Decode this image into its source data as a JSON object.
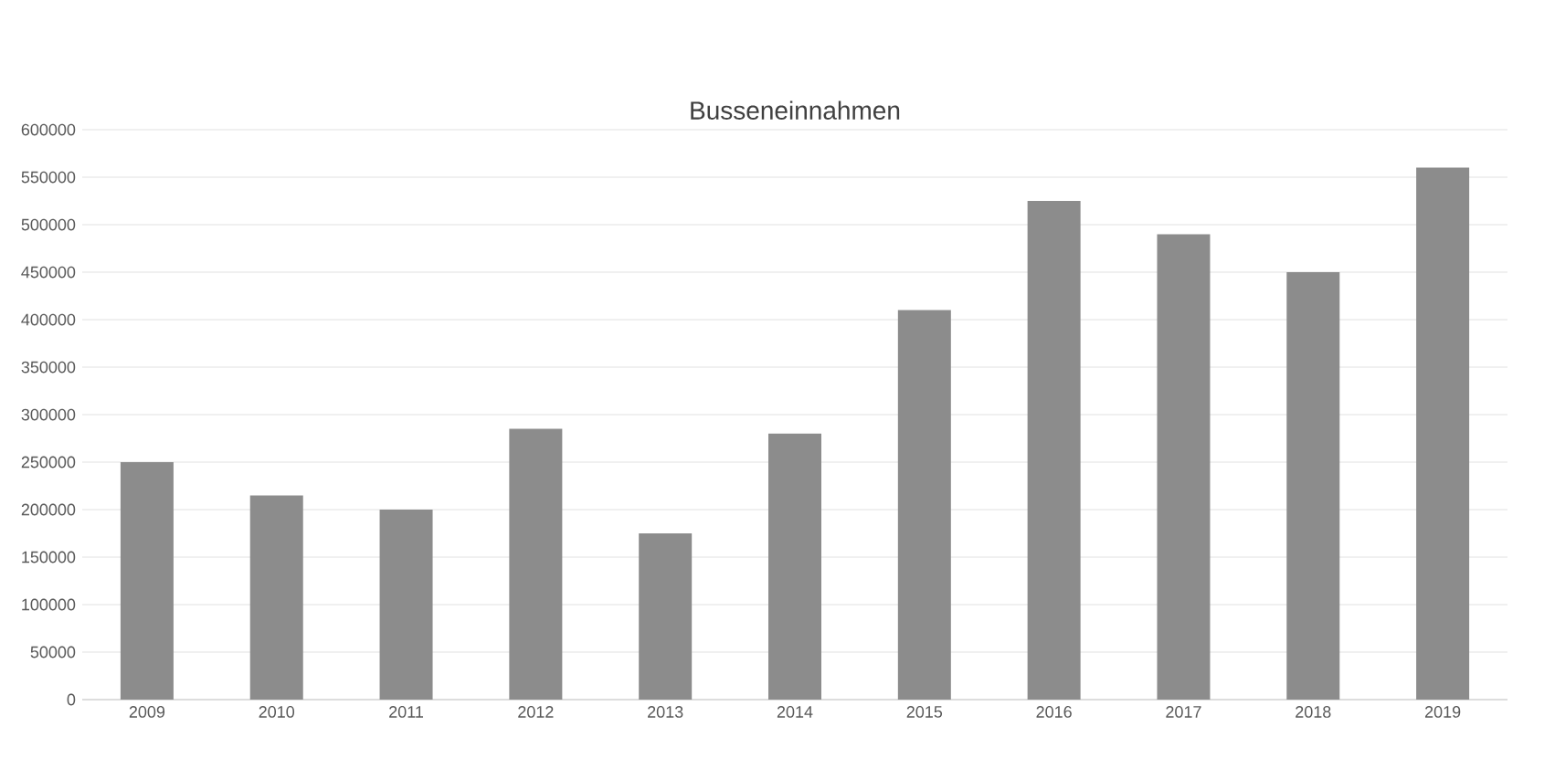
{
  "chart_data": {
    "type": "bar",
    "title": "Busseneinnahmen",
    "categories": [
      "2009",
      "2010",
      "2011",
      "2012",
      "2013",
      "2014",
      "2015",
      "2016",
      "2017",
      "2018",
      "2019"
    ],
    "values": [
      250000,
      215000,
      200000,
      285000,
      175000,
      280000,
      410000,
      525000,
      490000,
      450000,
      560000
    ],
    "color": "#8c8c8c",
    "ylim": [
      0,
      600000
    ],
    "yticks": [
      0,
      50000,
      100000,
      150000,
      200000,
      250000,
      300000,
      350000,
      400000,
      450000,
      500000,
      550000,
      600000
    ],
    "grid": "y"
  }
}
